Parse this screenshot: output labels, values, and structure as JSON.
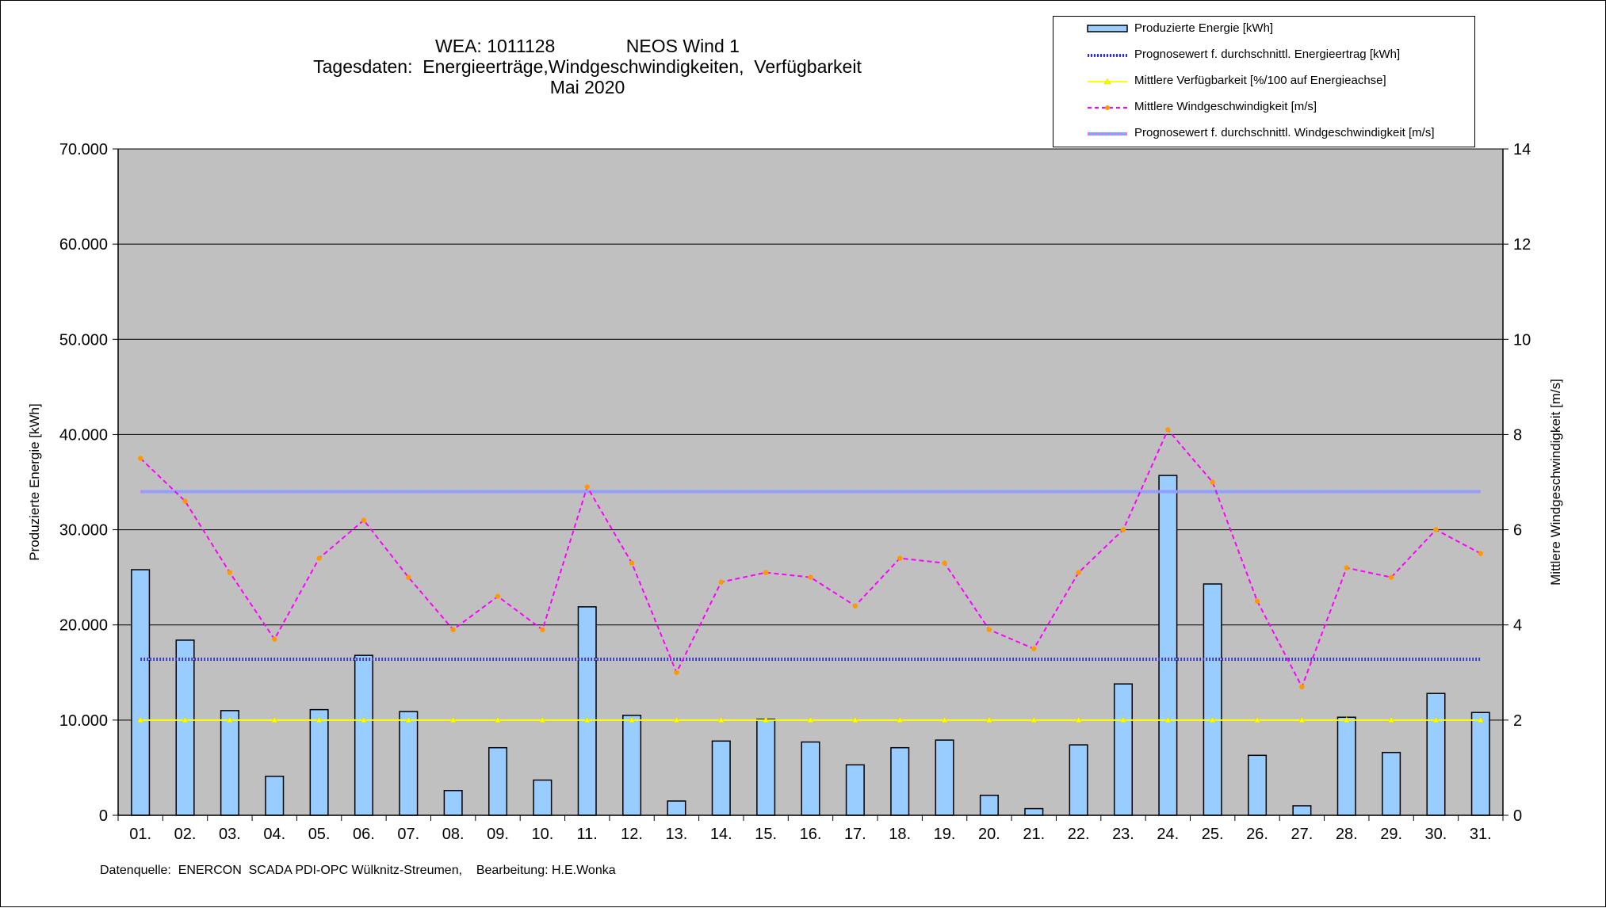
{
  "title": {
    "line1": "WEA: 1011128              NEOS Wind 1",
    "line2": "Tagesdaten:  Energieerträge,Windgeschwindigkeiten,  Verfügbarkeit",
    "line3": "Mai 2020"
  },
  "footnote": "Datenquelle:  ENERCON  SCADA PDI-OPC Wülknitz-Streumen,    Bearbeitung: H.E.Wonka",
  "legend": [
    {
      "label": "Produzierte Energie [kWh]",
      "kind": "bar"
    },
    {
      "label": "Prognosewert f. durchschnittl. Energieertrag  [kWh]",
      "kind": "prog-energy"
    },
    {
      "label": "Mittlere Verfügbarkeit [%/100 auf Energieachse]",
      "kind": "availability"
    },
    {
      "label": "Mittlere Windgeschwindigkeit [m/s]",
      "kind": "wind"
    },
    {
      "label": "Prognosewert f. durchschnittl. Windgeschwindigkeit [m/s]",
      "kind": "prog-wind"
    }
  ],
  "colors": {
    "plot_bg": "#c0c0c0",
    "bar_fill": "#99ccff",
    "bar_stroke": "#000000",
    "prog_energy": "#3333cc",
    "availability": "#ffff00",
    "wind": "#ff00ff",
    "wind_marker": "#ff9900",
    "prog_wind_a": "#ff66ff",
    "prog_wind_b": "#33ccff"
  },
  "chart_data": {
    "type": "bar",
    "categories": [
      "01.",
      "02.",
      "03.",
      "04.",
      "05.",
      "06.",
      "07.",
      "08.",
      "09.",
      "10.",
      "11.",
      "12.",
      "13.",
      "14.",
      "15.",
      "16.",
      "17.",
      "18.",
      "19.",
      "20.",
      "21.",
      "22.",
      "23.",
      "24.",
      "25.",
      "26.",
      "27.",
      "28.",
      "29.",
      "30.",
      "31."
    ],
    "ylabel": "Produzierte Energie [kWh]",
    "y2label": "Mittlere Windgeschwindigkeit [m/s]",
    "ylim": [
      0,
      70000
    ],
    "y2lim": [
      0,
      14
    ],
    "yticks": [
      "0",
      "10.000",
      "20.000",
      "30.000",
      "40.000",
      "50.000",
      "60.000",
      "70.000"
    ],
    "y2ticks": [
      "0",
      "2",
      "4",
      "6",
      "8",
      "10",
      "12",
      "14"
    ],
    "grid": true,
    "legend_position": "top-right",
    "series": [
      {
        "name": "Produzierte Energie [kWh]",
        "type": "bar",
        "axis": "left",
        "values": [
          25800,
          18400,
          11000,
          4100,
          11100,
          16800,
          10900,
          2600,
          7100,
          3700,
          21900,
          10500,
          1500,
          7800,
          10100,
          7700,
          5300,
          7100,
          7900,
          2100,
          700,
          7400,
          13800,
          35700,
          24300,
          6300,
          1000,
          10300,
          6600,
          12800,
          10800
        ]
      },
      {
        "name": "Prognosewert f. durchschnittl. Energieertrag  [kWh]",
        "type": "line",
        "axis": "left",
        "constant": 16400
      },
      {
        "name": "Mittlere Verfügbarkeit [%/100 auf Energieachse]",
        "type": "line",
        "axis": "left",
        "constant": 10000
      },
      {
        "name": "Mittlere Windgeschwindigkeit [m/s]",
        "type": "line",
        "axis": "right",
        "values": [
          7.5,
          6.6,
          5.1,
          3.7,
          5.4,
          6.2,
          5.0,
          3.9,
          4.6,
          3.9,
          6.9,
          5.3,
          3.0,
          4.9,
          5.1,
          5.0,
          4.4,
          5.4,
          5.3,
          3.9,
          3.5,
          5.1,
          6.0,
          8.1,
          7.0,
          4.5,
          2.7,
          5.2,
          5.0,
          6.0,
          5.5
        ]
      },
      {
        "name": "Prognosewert f. durchschnittl. Windgeschwindigkeit [m/s]",
        "type": "line",
        "axis": "right",
        "constant": 6.8
      }
    ]
  }
}
